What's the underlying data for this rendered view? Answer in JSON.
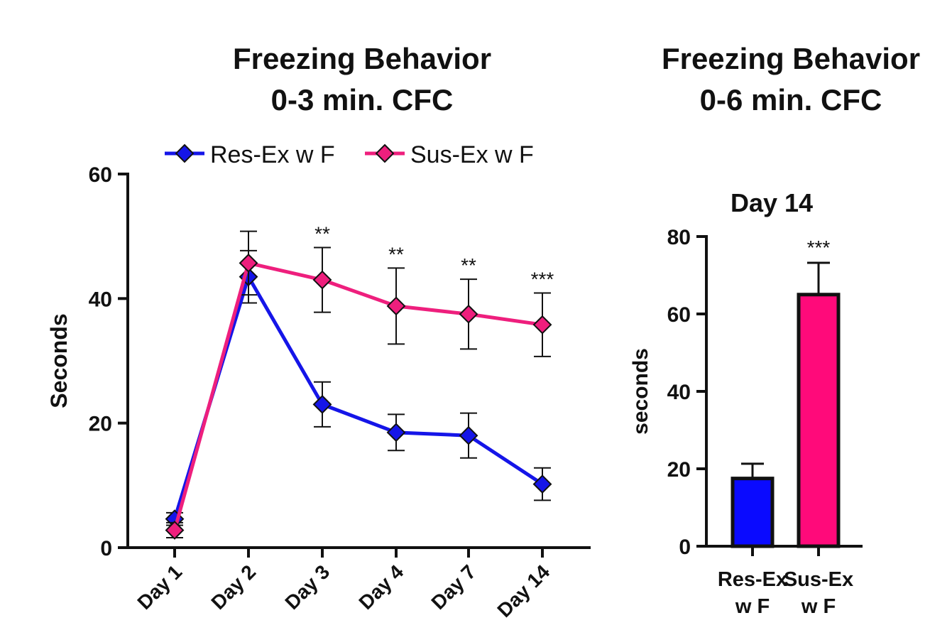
{
  "chart_data": [
    {
      "type": "line",
      "title_line1": "Freezing Behavior",
      "title_line2": "0-3 min. CFC",
      "xlabel": "",
      "ylabel": "Seconds",
      "ylim": [
        0,
        60
      ],
      "yticks": [
        "0",
        "20",
        "40",
        "60"
      ],
      "categories": [
        "Day 1",
        "Day 2",
        "Day 3",
        "Day 4",
        "Day 7",
        "Day 14"
      ],
      "series": [
        {
          "name": "Res-Ex w F",
          "color": "#1515e8",
          "values": [
            4.6,
            43.5,
            23.0,
            18.5,
            18.0,
            10.2
          ],
          "err": [
            1.0,
            4.2,
            3.6,
            2.9,
            3.6,
            2.6
          ]
        },
        {
          "name": "Sus-Ex w F",
          "color": "#ee1f7d",
          "values": [
            2.8,
            45.7,
            43.0,
            38.8,
            37.5,
            35.8
          ],
          "err": [
            1.2,
            5.1,
            5.2,
            6.1,
            5.6,
            5.1
          ]
        }
      ],
      "significance": [
        "",
        "",
        "**",
        "**",
        "**",
        "***"
      ]
    },
    {
      "type": "bar",
      "title_line1": "Freezing Behavior",
      "title_line2": "0-6 min. CFC",
      "subtitle": "Day 14",
      "ylabel": "seconds",
      "ylim": [
        0,
        80
      ],
      "yticks": [
        "0",
        "20",
        "40",
        "60",
        "80"
      ],
      "categories": [
        [
          "Res-Ex",
          "w F"
        ],
        [
          "Sus-Ex",
          "w F"
        ]
      ],
      "values": [
        17.5,
        65.0
      ],
      "err": [
        3.8,
        8.2
      ],
      "colors": [
        "#0a0aff",
        "#ff0a7a"
      ],
      "significance": [
        "",
        "***"
      ]
    }
  ]
}
